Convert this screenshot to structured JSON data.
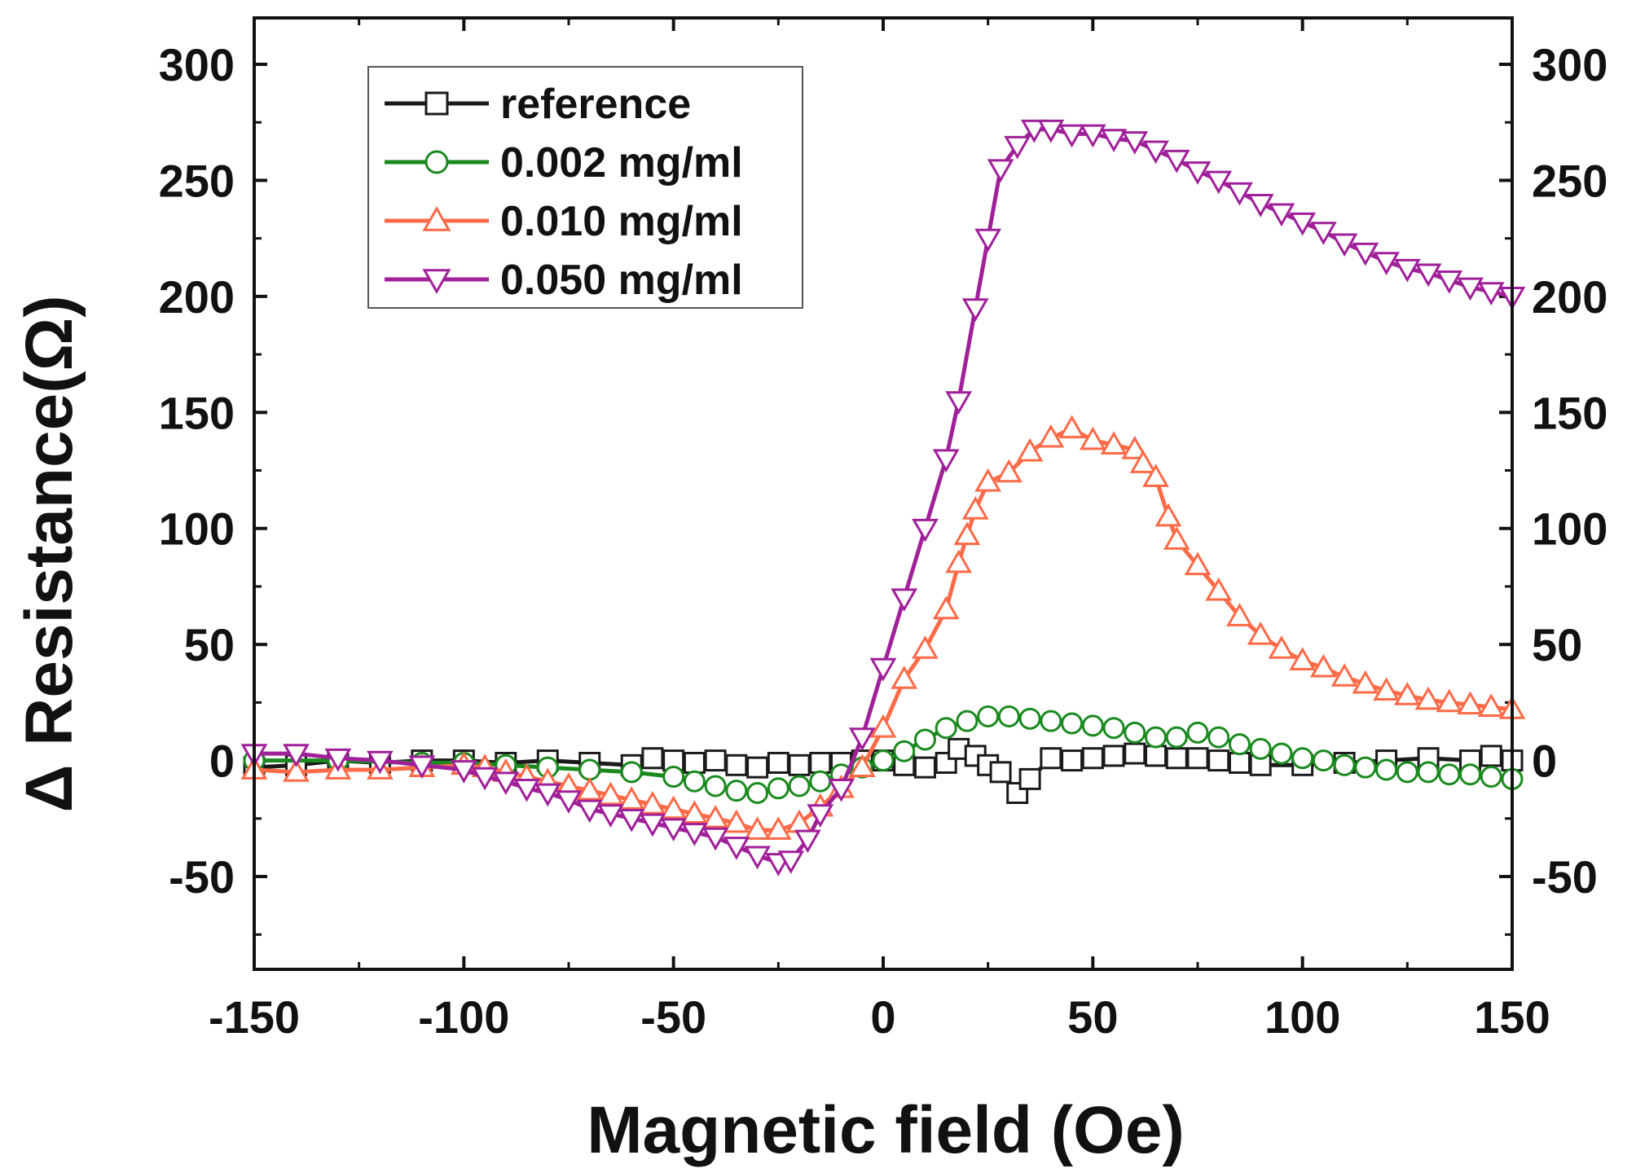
{
  "chart_data": {
    "type": "line",
    "title": "",
    "xlabel": "Magnetic field (Oe)",
    "ylabel": "Δ Resistance(Ω)",
    "xlim": [
      -150,
      150
    ],
    "ylim": [
      -90,
      320
    ],
    "xticks": [
      -150,
      -100,
      -50,
      0,
      50,
      100,
      150
    ],
    "yticks": [
      -50,
      0,
      50,
      100,
      150,
      200,
      250,
      300
    ],
    "tick_labels_x": [
      "-150",
      "-100",
      "-50",
      "0",
      "50",
      "100",
      "150"
    ],
    "tick_labels_y": [
      "-50",
      "0",
      "50",
      "100",
      "150",
      "200",
      "250",
      "300"
    ],
    "right_axis_mirrored": true,
    "grid": false,
    "legend_position": "top-left",
    "series": [
      {
        "name": "reference",
        "color": "#1a1a1a",
        "marker": "square",
        "points": [
          [
            -150,
            -3
          ],
          [
            -140,
            -2
          ],
          [
            -130,
            0
          ],
          [
            -120,
            -1
          ],
          [
            -110,
            0
          ],
          [
            -100,
            0
          ],
          [
            -90,
            -1
          ],
          [
            -80,
            0
          ],
          [
            -70,
            -1
          ],
          [
            -60,
            -2
          ],
          [
            -55,
            1
          ],
          [
            -50,
            0
          ],
          [
            -45,
            -1
          ],
          [
            -40,
            0
          ],
          [
            -35,
            -2
          ],
          [
            -30,
            -3
          ],
          [
            -25,
            -1
          ],
          [
            -20,
            -2
          ],
          [
            -15,
            -1
          ],
          [
            -10,
            -1
          ],
          [
            -5,
            0
          ],
          [
            0,
            0
          ],
          [
            5,
            -2
          ],
          [
            10,
            -3
          ],
          [
            15,
            -1
          ],
          [
            18,
            5
          ],
          [
            22,
            2
          ],
          [
            25,
            -2
          ],
          [
            28,
            -5
          ],
          [
            32,
            -14
          ],
          [
            35,
            -8
          ],
          [
            40,
            1
          ],
          [
            45,
            0
          ],
          [
            50,
            1
          ],
          [
            55,
            2
          ],
          [
            60,
            3
          ],
          [
            65,
            2
          ],
          [
            70,
            1
          ],
          [
            75,
            1
          ],
          [
            80,
            0
          ],
          [
            85,
            -1
          ],
          [
            90,
            -2
          ],
          [
            100,
            -2
          ],
          [
            110,
            -1
          ],
          [
            120,
            0
          ],
          [
            130,
            1
          ],
          [
            140,
            0
          ],
          [
            145,
            2
          ],
          [
            150,
            0
          ]
        ]
      },
      {
        "name": "0.002 mg/ml",
        "color": "#1a8a1f",
        "marker": "circle",
        "points": [
          [
            -150,
            0
          ],
          [
            -130,
            0
          ],
          [
            -110,
            -1
          ],
          [
            -100,
            -1
          ],
          [
            -90,
            -2
          ],
          [
            -80,
            -3
          ],
          [
            -70,
            -4
          ],
          [
            -60,
            -5
          ],
          [
            -50,
            -7
          ],
          [
            -45,
            -9
          ],
          [
            -40,
            -11
          ],
          [
            -35,
            -13
          ],
          [
            -30,
            -14
          ],
          [
            -25,
            -12
          ],
          [
            -20,
            -11
          ],
          [
            -15,
            -9
          ],
          [
            -10,
            -6
          ],
          [
            -5,
            -3
          ],
          [
            0,
            0
          ],
          [
            5,
            4
          ],
          [
            10,
            9
          ],
          [
            15,
            14
          ],
          [
            20,
            17
          ],
          [
            25,
            19
          ],
          [
            30,
            19
          ],
          [
            35,
            18
          ],
          [
            40,
            17
          ],
          [
            45,
            16
          ],
          [
            50,
            15
          ],
          [
            55,
            14
          ],
          [
            60,
            12
          ],
          [
            65,
            10
          ],
          [
            70,
            10
          ],
          [
            75,
            12
          ],
          [
            80,
            10
          ],
          [
            85,
            7
          ],
          [
            90,
            5
          ],
          [
            95,
            3
          ],
          [
            100,
            1
          ],
          [
            105,
            0
          ],
          [
            110,
            -2
          ],
          [
            115,
            -3
          ],
          [
            120,
            -4
          ],
          [
            125,
            -5
          ],
          [
            130,
            -5
          ],
          [
            135,
            -6
          ],
          [
            140,
            -6
          ],
          [
            145,
            -7
          ],
          [
            150,
            -8
          ]
        ]
      },
      {
        "name": "0.010 mg/ml",
        "color": "#ff6a47",
        "marker": "triangle-up",
        "points": [
          [
            -150,
            -4
          ],
          [
            -140,
            -5
          ],
          [
            -130,
            -4
          ],
          [
            -120,
            -4
          ],
          [
            -110,
            -3
          ],
          [
            -100,
            -2
          ],
          [
            -95,
            -3
          ],
          [
            -90,
            -5
          ],
          [
            -85,
            -7
          ],
          [
            -80,
            -9
          ],
          [
            -75,
            -11
          ],
          [
            -70,
            -13
          ],
          [
            -65,
            -15
          ],
          [
            -60,
            -17
          ],
          [
            -55,
            -19
          ],
          [
            -50,
            -21
          ],
          [
            -45,
            -23
          ],
          [
            -40,
            -25
          ],
          [
            -35,
            -27
          ],
          [
            -30,
            -30
          ],
          [
            -25,
            -30
          ],
          [
            -20,
            -27
          ],
          [
            -15,
            -20
          ],
          [
            -10,
            -12
          ],
          [
            -5,
            -3
          ],
          [
            0,
            14
          ],
          [
            5,
            35
          ],
          [
            10,
            48
          ],
          [
            15,
            65
          ],
          [
            18,
            85
          ],
          [
            20,
            97
          ],
          [
            22,
            108
          ],
          [
            25,
            120
          ],
          [
            30,
            124
          ],
          [
            35,
            133
          ],
          [
            40,
            139
          ],
          [
            45,
            143
          ],
          [
            50,
            138
          ],
          [
            55,
            136
          ],
          [
            60,
            134
          ],
          [
            62,
            128
          ],
          [
            65,
            122
          ],
          [
            68,
            105
          ],
          [
            70,
            95
          ],
          [
            75,
            84
          ],
          [
            80,
            73
          ],
          [
            85,
            62
          ],
          [
            90,
            54
          ],
          [
            95,
            48
          ],
          [
            100,
            43
          ],
          [
            105,
            40
          ],
          [
            110,
            36
          ],
          [
            115,
            33
          ],
          [
            120,
            30
          ],
          [
            125,
            28
          ],
          [
            130,
            26
          ],
          [
            135,
            25
          ],
          [
            140,
            24
          ],
          [
            145,
            23
          ],
          [
            150,
            22
          ]
        ]
      },
      {
        "name": "0.050 mg/ml",
        "color": "#a0209a",
        "marker": "triangle-down",
        "points": [
          [
            -150,
            3
          ],
          [
            -140,
            3
          ],
          [
            -130,
            1
          ],
          [
            -120,
            0
          ],
          [
            -110,
            -2
          ],
          [
            -100,
            -4
          ],
          [
            -95,
            -7
          ],
          [
            -90,
            -9
          ],
          [
            -85,
            -12
          ],
          [
            -80,
            -14
          ],
          [
            -75,
            -17
          ],
          [
            -70,
            -21
          ],
          [
            -65,
            -23
          ],
          [
            -60,
            -25
          ],
          [
            -55,
            -27
          ],
          [
            -50,
            -29
          ],
          [
            -45,
            -31
          ],
          [
            -40,
            -33
          ],
          [
            -35,
            -37
          ],
          [
            -30,
            -41
          ],
          [
            -25,
            -44
          ],
          [
            -22,
            -43
          ],
          [
            -18,
            -34
          ],
          [
            -15,
            -23
          ],
          [
            -10,
            -12
          ],
          [
            -5,
            10
          ],
          [
            0,
            40
          ],
          [
            5,
            70
          ],
          [
            10,
            100
          ],
          [
            15,
            130
          ],
          [
            18,
            155
          ],
          [
            22,
            195
          ],
          [
            25,
            225
          ],
          [
            28,
            255
          ],
          [
            32,
            265
          ],
          [
            36,
            272
          ],
          [
            40,
            272
          ],
          [
            45,
            270
          ],
          [
            50,
            270
          ],
          [
            55,
            268
          ],
          [
            60,
            267
          ],
          [
            65,
            263
          ],
          [
            70,
            259
          ],
          [
            75,
            254
          ],
          [
            80,
            250
          ],
          [
            85,
            245
          ],
          [
            90,
            240
          ],
          [
            95,
            236
          ],
          [
            100,
            232
          ],
          [
            105,
            228
          ],
          [
            110,
            223
          ],
          [
            115,
            219
          ],
          [
            120,
            215
          ],
          [
            125,
            212
          ],
          [
            130,
            210
          ],
          [
            135,
            207
          ],
          [
            140,
            204
          ],
          [
            145,
            202
          ],
          [
            150,
            200
          ]
        ]
      }
    ]
  }
}
